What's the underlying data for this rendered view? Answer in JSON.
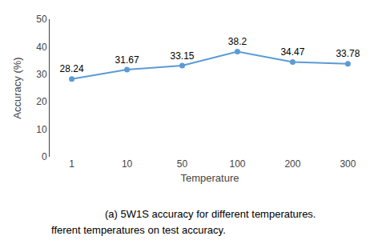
{
  "chart_data": {
    "type": "line",
    "x_label": "Temperature",
    "y_label": "Accuracy (%)",
    "categories": [
      "1",
      "10",
      "50",
      "100",
      "200",
      "300"
    ],
    "values": [
      28.24,
      31.67,
      33.15,
      38.2,
      34.47,
      33.78
    ],
    "color": "#5B9BD5",
    "marker": "circle",
    "data_labels": true,
    "ylim": [
      0,
      50
    ],
    "yticks": [
      0,
      10,
      20,
      30,
      40,
      50
    ],
    "grid": false,
    "annotations": [
      "(a) 5W1S accuracy for different temperatures.",
      "fferent temperatures on test accuracy."
    ]
  }
}
